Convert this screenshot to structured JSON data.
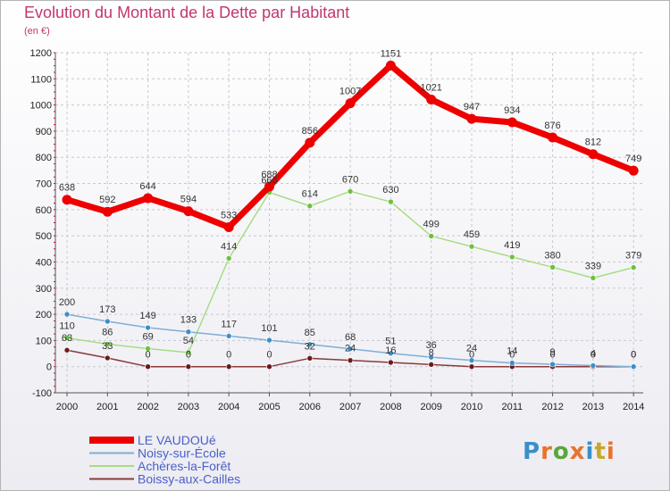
{
  "title": "Evolution du Montant de la Dette par Habitant",
  "subtitle": "(en €)",
  "logo": "Proxiti",
  "colors": {
    "title": "#c2366e",
    "grid": "#c8c8d2",
    "axis_ticks": "#d0002a",
    "logo_letters": [
      "#3a8fc9",
      "#e8742a",
      "#5aa63a",
      "#e8742a",
      "#3a8fc9",
      "#c9a62a",
      "#e8742a"
    ]
  },
  "chart_data": {
    "type": "line",
    "title": "Evolution du Montant de la Dette par Habitant",
    "subtitle": "(en €)",
    "x": [
      "2000",
      "2001",
      "2002",
      "2003",
      "2004",
      "2005",
      "2006",
      "2007",
      "2008",
      "2009",
      "2010",
      "2011",
      "2012",
      "2013",
      "2014"
    ],
    "ylim": [
      -100,
      1200
    ],
    "yticks": [
      -100,
      0,
      100,
      200,
      300,
      400,
      500,
      600,
      700,
      800,
      900,
      1000,
      1100,
      1200
    ],
    "grid": true,
    "legend_position": "bottom-left",
    "series": [
      {
        "name": "LE VAUDOUé",
        "color": "#ee0000",
        "marker": "#ee0000",
        "width": 7,
        "values": [
          638,
          592,
          644,
          594,
          533,
          688,
          856,
          1007,
          1151,
          1021,
          947,
          934,
          876,
          812,
          749
        ],
        "labels": [
          "638",
          "592",
          "644",
          "594",
          "533",
          "688",
          "856",
          "1007",
          "1151",
          "1021",
          "947",
          "934",
          "876",
          "812",
          "749"
        ]
      },
      {
        "name": "Noisy-sur-École",
        "color": "#7eaed6",
        "marker": "#3a8fc9",
        "width": 1.5,
        "values": [
          200,
          173,
          149,
          133,
          117,
          101,
          85,
          68,
          51,
          36,
          24,
          14,
          9,
          4,
          0
        ],
        "labels": [
          "200",
          "173",
          "149",
          "133",
          "117",
          "101",
          "85",
          "68",
          "51",
          "36",
          "24",
          "14",
          "9",
          "4",
          "0"
        ]
      },
      {
        "name": "Achères-la-Forêt",
        "color": "#a8dc82",
        "marker": "#6cc23a",
        "width": 1.5,
        "values": [
          110,
          86,
          69,
          54,
          414,
          666,
          614,
          670,
          630,
          499,
          459,
          419,
          380,
          339,
          379
        ],
        "labels": [
          "110",
          "86",
          "69",
          "54",
          "414",
          "666",
          "614",
          "670",
          "630",
          "499",
          "459",
          "419",
          "380",
          "339",
          "379"
        ]
      },
      {
        "name": "Boissy-aux-Cailles",
        "color": "#8a3a3a",
        "marker": "#6a1a1a",
        "width": 1.5,
        "values": [
          63,
          33,
          0,
          0,
          0,
          0,
          32,
          24,
          16,
          8,
          0,
          0,
          0,
          0,
          0
        ],
        "labels": [
          "63",
          "33",
          "0",
          "0",
          "0",
          "0",
          "32",
          "24",
          "16",
          "8",
          "0",
          "0",
          "0",
          "0",
          "0"
        ]
      }
    ]
  }
}
